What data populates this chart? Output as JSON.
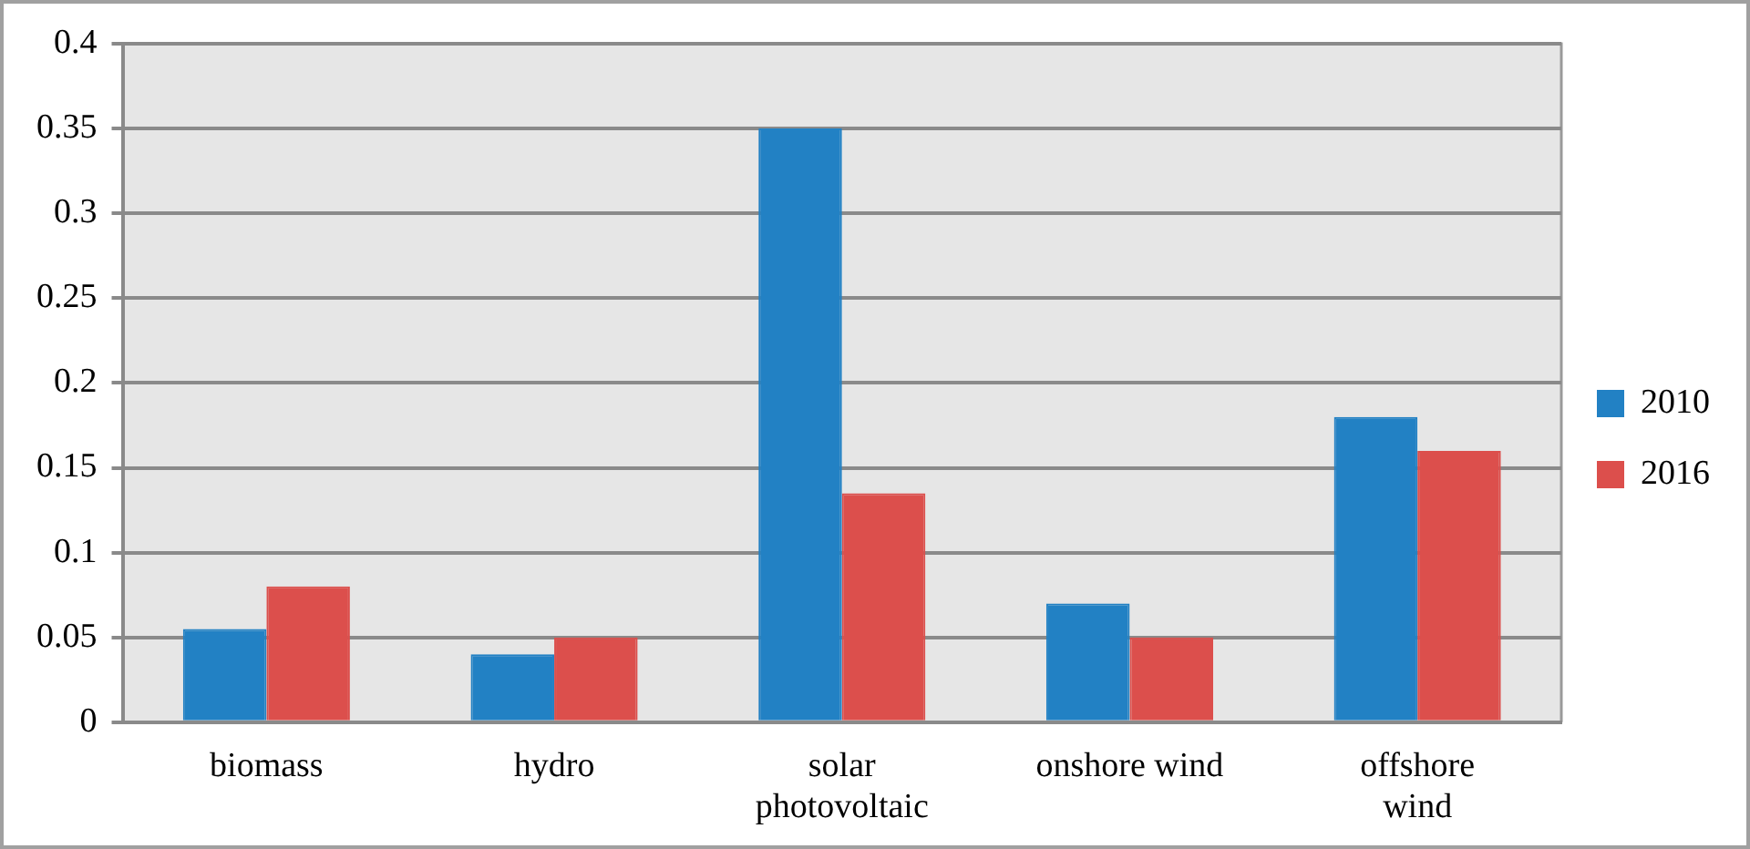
{
  "chart_data": {
    "type": "bar",
    "categories": [
      "biomass",
      "hydro",
      "solar photovoltaic",
      "onshore wind",
      "offshore wind"
    ],
    "series": [
      {
        "name": "2010",
        "color": "#2281c4",
        "values": [
          0.055,
          0.04,
          0.35,
          0.07,
          0.18
        ]
      },
      {
        "name": "2016",
        "color": "#dc4f4c",
        "values": [
          0.08,
          0.05,
          0.135,
          0.05,
          0.16
        ]
      }
    ],
    "ylim": [
      0,
      0.4
    ],
    "yticks": [
      0,
      0.05,
      0.1,
      0.15,
      0.2,
      0.25,
      0.3,
      0.35,
      0.4
    ],
    "grid": "y",
    "legend": "right"
  }
}
